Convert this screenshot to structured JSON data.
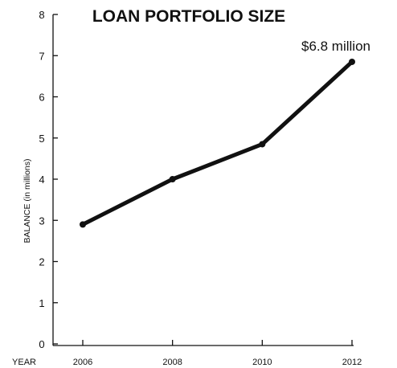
{
  "chart_data": {
    "type": "line",
    "title": "LOAN PORTFOLIO SIZE",
    "ylabel": "BALANCE (in millions)",
    "xlabel": "YEAR",
    "x": [
      "2006",
      "2008",
      "2010",
      "2012"
    ],
    "series": [
      {
        "values": [
          2.9,
          4.0,
          4.85,
          6.85
        ]
      }
    ],
    "ylim": [
      0,
      8
    ],
    "yticks": [
      0,
      1,
      2,
      3,
      4,
      5,
      6,
      7,
      8
    ],
    "annotations": [
      {
        "text": "$6.8 million",
        "x": "2012"
      }
    ],
    "grid": false,
    "color": "#111111"
  }
}
